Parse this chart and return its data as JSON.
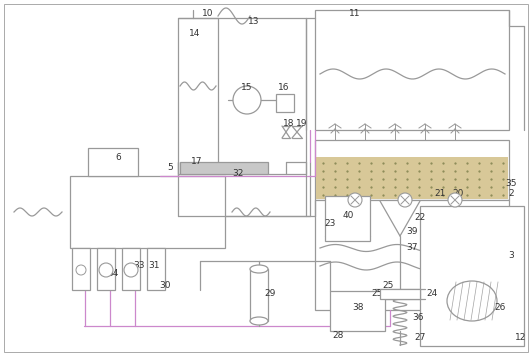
{
  "fig_width": 5.32,
  "fig_height": 3.56,
  "dpi": 100,
  "lc": "#999999",
  "lc2": "#cc88cc",
  "lw": 0.9,
  "bg": "#f0f0f0"
}
